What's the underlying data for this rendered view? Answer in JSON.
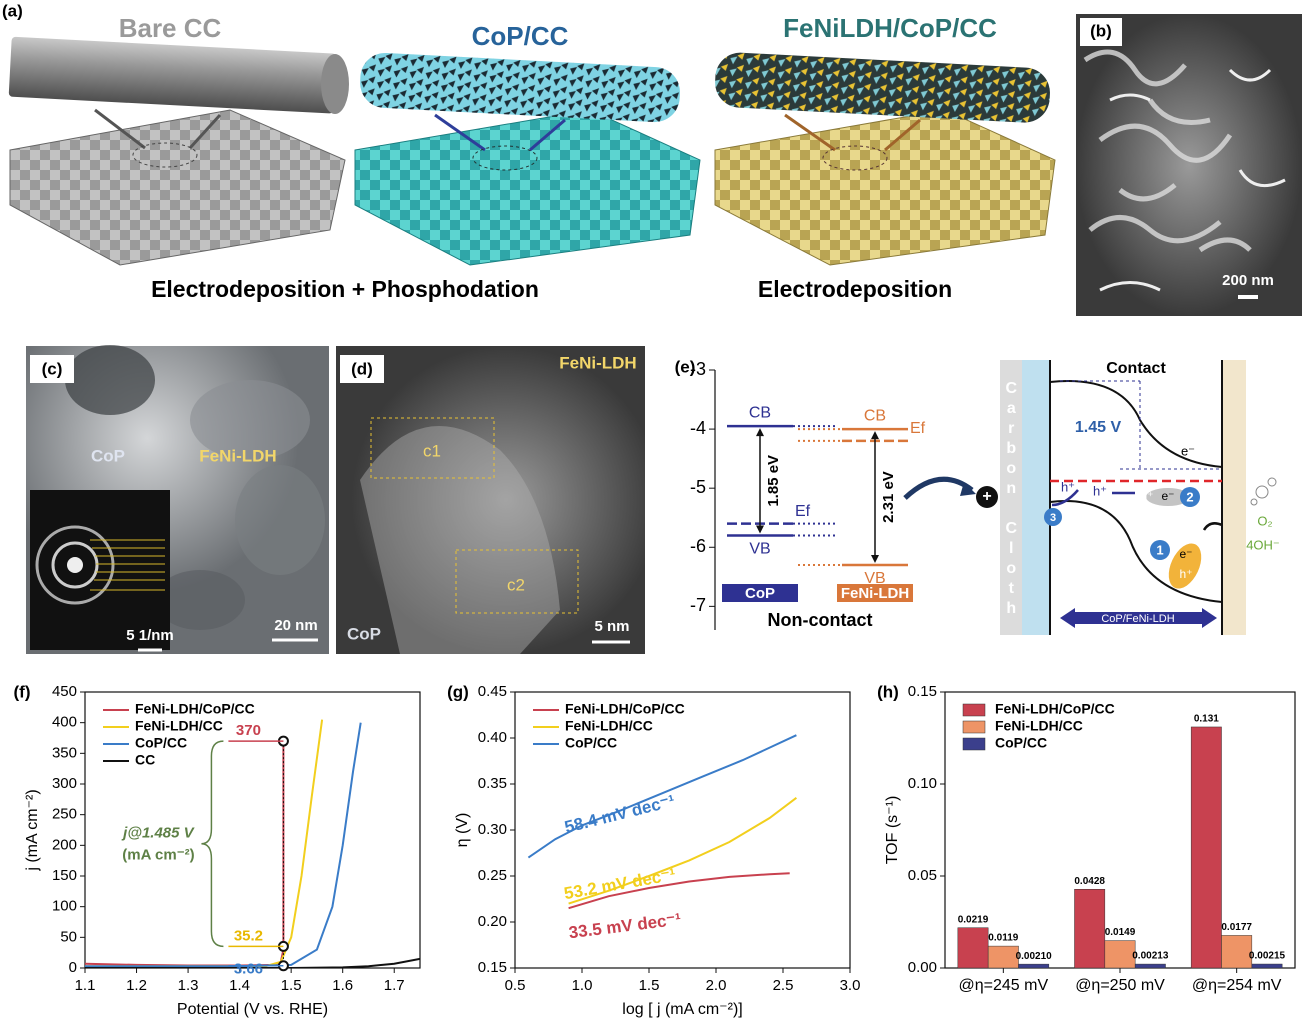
{
  "panels": {
    "a": {
      "label": "(a)",
      "titles": [
        "Bare CC",
        "CoP/CC",
        "FeNiLDH/CoP/CC"
      ],
      "captions": [
        "Electrodeposition + Phosphodation",
        "Electrodeposition"
      ]
    },
    "b": {
      "label": "(b)",
      "scale": "200 nm"
    },
    "c": {
      "label": "(c)",
      "texts": [
        "CoP",
        "FeNi-LDH"
      ],
      "scale": "20 nm",
      "inset_scale": "5 1/nm"
    },
    "d": {
      "label": "(d)",
      "texts": [
        "FeNi-LDH",
        "CoP"
      ],
      "regions": [
        "c1",
        "c2"
      ],
      "scale": "5 nm"
    },
    "e": {
      "label": "(e)",
      "support": "Carbon Cloth",
      "title": "Contact",
      "potential": "1.45 V",
      "electron": "e⁻",
      "hole": "h⁺",
      "oxygen": "O₂",
      "hydroxide": "4OH⁻",
      "steps": [
        "1",
        "2",
        "3"
      ],
      "layer": "CoP/FeNi-LDH",
      "plus": "+"
    },
    "f": {
      "label": "(f)"
    },
    "g": {
      "label": "(g)"
    },
    "h": {
      "label": "(h)"
    }
  },
  "chart_data": [
    {
      "type": "band",
      "ylim": [
        -7.4,
        -3
      ],
      "yticks": [
        -3,
        -4,
        -5,
        -6,
        -7
      ],
      "categories": [
        "CoP",
        "FeNi-LDH"
      ],
      "colors": [
        "#2e3192",
        "#d9773a"
      ],
      "series": [
        {
          "name": "CB",
          "values": [
            -3.95,
            -4.0
          ]
        },
        {
          "name": "VB",
          "values": [
            -5.8,
            -6.3
          ]
        },
        {
          "name": "Ef",
          "values": [
            -5.6,
            -4.2
          ]
        }
      ],
      "gap_labels": [
        "1.85 eV",
        "2.31 eV"
      ],
      "footer": "Non-contact"
    },
    {
      "type": "line",
      "xlabel": "Potential (V vs. RHE)",
      "ylabel": "j (mA cm⁻²)",
      "xlim": [
        1.1,
        1.75
      ],
      "ylim": [
        0,
        450
      ],
      "xticks": [
        1.1,
        1.2,
        1.3,
        1.4,
        1.5,
        1.6,
        1.7
      ],
      "yticks": [
        0,
        50,
        100,
        150,
        200,
        250,
        300,
        350,
        400,
        450
      ],
      "legend": "upper-left",
      "series": [
        {
          "name": "FeNi-LDH/CoP/CC",
          "color": "#c8414f",
          "x": [
            1.1,
            1.2,
            1.3,
            1.4,
            1.47,
            1.48,
            1.485,
            1.485
          ],
          "values": [
            7,
            5,
            4,
            4,
            5,
            10,
            30,
            370
          ]
        },
        {
          "name": "FeNi-LDH/CC",
          "color": "#f2cf1d",
          "x": [
            1.1,
            1.3,
            1.45,
            1.48,
            1.5,
            1.52,
            1.54,
            1.56
          ],
          "values": [
            3,
            3,
            3,
            10,
            50,
            150,
            280,
            405
          ]
        },
        {
          "name": "CoP/CC",
          "color": "#3a7cc8",
          "x": [
            1.1,
            1.4,
            1.5,
            1.55,
            1.58,
            1.6,
            1.62,
            1.635
          ],
          "values": [
            3,
            3,
            5,
            30,
            100,
            200,
            320,
            400
          ]
        },
        {
          "name": "CC",
          "color": "#111111",
          "x": [
            1.1,
            1.5,
            1.6,
            1.65,
            1.7,
            1.75
          ],
          "values": [
            0,
            0,
            1,
            3,
            7,
            15
          ]
        }
      ],
      "markers": {
        "x": 1.485,
        "values": [
          370,
          35.2,
          3.66
        ],
        "colors": [
          "#c8414f",
          "#e8b800",
          "#3a7cc8"
        ]
      },
      "brace_label": [
        "j@1.485 V",
        "(mA cm⁻²)"
      ],
      "brace_color": "#5e8046"
    },
    {
      "type": "line",
      "xlabel": "log [ j (mA cm⁻²)]",
      "ylabel": "η (V)",
      "xlim": [
        0.5,
        3.0
      ],
      "ylim": [
        0.15,
        0.45
      ],
      "xticks": [
        0.5,
        {
          "value": 1,
          "label": "1.0"
        },
        1.5,
        {
          "value": 2,
          "label": "2.0"
        },
        2.5,
        {
          "value": 3,
          "label": "3.0"
        }
      ],
      "yticks": [
        0.15,
        {
          "value": 0.2,
          "label": "0.20"
        },
        0.25,
        {
          "value": 0.3,
          "label": "0.30"
        },
        0.35,
        {
          "value": 0.4,
          "label": "0.40"
        },
        0.45
      ],
      "legend": "upper-left",
      "series": [
        {
          "name": "FeNi-LDH/CoP/CC",
          "color": "#c8414f",
          "x": [
            0.9,
            1.2,
            1.5,
            1.8,
            2.1,
            2.4,
            2.55
          ],
          "values": [
            0.215,
            0.228,
            0.237,
            0.244,
            0.249,
            0.252,
            0.253
          ]
        },
        {
          "name": "FeNi-LDH/CC",
          "color": "#f2cf1d",
          "x": [
            0.9,
            1.2,
            1.5,
            1.8,
            2.1,
            2.4,
            2.6
          ],
          "values": [
            0.22,
            0.234,
            0.25,
            0.267,
            0.287,
            0.313,
            0.335
          ]
        },
        {
          "name": "CoP/CC",
          "color": "#3a7cc8",
          "x": [
            0.6,
            0.8,
            1.0,
            1.3,
            1.6,
            1.9,
            2.2,
            2.6
          ],
          "values": [
            0.27,
            0.29,
            0.305,
            0.322,
            0.34,
            0.358,
            0.376,
            0.403
          ]
        }
      ],
      "annotations": [
        {
          "text": "58.4 mV dec⁻¹",
          "color": "#3a7cc8"
        },
        {
          "text": "53.2 mV dec⁻¹",
          "color": "#f2cf1d"
        },
        {
          "text": "33.5 mV dec⁻¹",
          "color": "#c8414f"
        }
      ]
    },
    {
      "type": "bar",
      "ylabel": "TOF (s⁻¹)",
      "ylim": [
        0,
        0.15
      ],
      "yticks": [
        {
          "value": 0,
          "label": "0.00"
        },
        0.05,
        {
          "value": 0.1,
          "label": "0.10"
        },
        0.15
      ],
      "categories": [
        "@η=245 mV",
        "@η=250 mV",
        "@η=254 mV"
      ],
      "legend": "upper-left",
      "series": [
        {
          "name": "FeNi-LDH/CoP/CC",
          "color": "#c8414f",
          "values": [
            0.0219,
            0.0428,
            0.131
          ]
        },
        {
          "name": "FeNi-LDH/CC",
          "color": "#ee9466",
          "values": [
            0.0119,
            0.0149,
            0.0177
          ]
        },
        {
          "name": "CoP/CC",
          "color": "#3b3f8c",
          "values": [
            0.0021,
            0.00213,
            0.00215
          ],
          "value_labels": [
            "0.00210",
            "0.00213",
            "0.00215"
          ]
        }
      ]
    }
  ]
}
